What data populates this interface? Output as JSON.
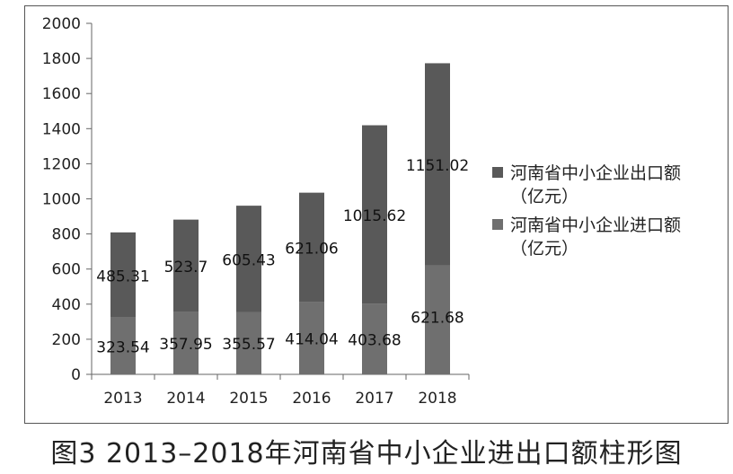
{
  "caption": "图3 2013–2018年河南省中小企业进出口额柱形图",
  "chart_data": {
    "type": "bar",
    "stacked": true,
    "categories": [
      "2013",
      "2014",
      "2015",
      "2016",
      "2017",
      "2018"
    ],
    "series": [
      {
        "name": "河南省中小企业进口额（亿元）",
        "values": [
          323.54,
          357.95,
          355.57,
          414.04,
          403.68,
          621.68
        ],
        "labels": [
          "323.54",
          "357.95",
          "355.57",
          "414.04",
          "403.68",
          "621.68"
        ],
        "color": "#6f6f6f"
      },
      {
        "name": "河南省中小企业出口额（亿元）",
        "values": [
          485.31,
          523.7,
          605.43,
          621.06,
          1015.62,
          1151.02
        ],
        "labels": [
          "485.31",
          "523.7",
          "605.43",
          "621.06",
          "1015.62",
          "1151.02"
        ],
        "color": "#595959"
      }
    ],
    "y_ticks": [
      "0",
      "200",
      "400",
      "600",
      "800",
      "1000",
      "1200",
      "1400",
      "1600",
      "1800",
      "2000"
    ],
    "ylim": [
      0,
      2000
    ],
    "grid": false,
    "legend_position": "right"
  },
  "legend": [
    {
      "name": "河南省中小企业出口额",
      "unit": "（亿元）",
      "color": "#595959"
    },
    {
      "name": "河南省中小企业进口额",
      "unit": "（亿元）",
      "color": "#6f6f6f"
    }
  ]
}
